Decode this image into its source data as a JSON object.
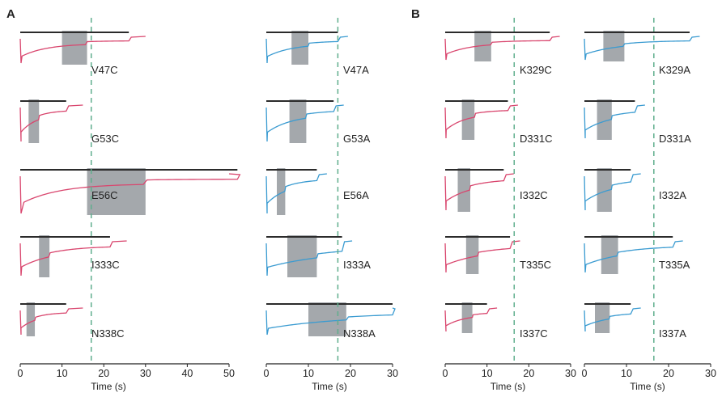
{
  "panels": [
    "A",
    "B"
  ],
  "colors": {
    "cys": "#d9466e",
    "ala": "#3a9bd1",
    "bar": "#2b2b2b",
    "shade": "#9a9fa3",
    "dash": "#5fae8d",
    "axis": "#222222"
  },
  "chart_data": [
    {
      "type": "line",
      "panel": "A",
      "column": "cysteine",
      "xlabel": "Time (s)",
      "xlim": [
        0,
        50
      ],
      "xticks": [
        0,
        10,
        20,
        30,
        40,
        50
      ],
      "reference_time_s": 17,
      "traces": [
        {
          "label": "V47C",
          "bar": [
            0,
            26
          ],
          "shade": [
            10,
            16
          ],
          "tau": 2.0
        },
        {
          "label": "G53C",
          "bar": [
            0,
            11
          ],
          "shade": [
            2,
            4.5
          ],
          "tau": 1.2
        },
        {
          "label": "E56C",
          "bar": [
            0,
            52
          ],
          "shade": [
            16,
            30
          ],
          "tau": 3.0
        },
        {
          "label": "I333C",
          "bar": [
            0,
            21.5
          ],
          "shade": [
            4.5,
            7
          ],
          "tau": 2.5
        },
        {
          "label": "N338C",
          "bar": [
            0,
            11
          ],
          "shade": [
            1.5,
            3.5
          ],
          "tau": 1.2
        }
      ]
    },
    {
      "type": "line",
      "panel": "A",
      "column": "alanine",
      "xlabel": "Time (s)",
      "xlim": [
        0,
        30
      ],
      "xticks": [
        0,
        10,
        20,
        30
      ],
      "reference_time_s": 17,
      "traces": [
        {
          "label": "V47A",
          "bar": [
            0,
            17
          ],
          "shade": [
            6,
            10
          ],
          "tau": 2.0
        },
        {
          "label": "G53A",
          "bar": [
            0,
            16
          ],
          "shade": [
            5.5,
            9.5
          ],
          "tau": 2.0
        },
        {
          "label": "E56A",
          "bar": [
            0,
            12
          ],
          "shade": [
            2.5,
            4.5
          ],
          "tau": 1.5
        },
        {
          "label": "I333A",
          "bar": [
            0,
            18
          ],
          "shade": [
            5,
            12
          ],
          "tau": 5.0
        },
        {
          "label": "N338A",
          "bar": [
            0,
            30
          ],
          "shade": [
            10,
            19
          ],
          "tau": 6.0
        }
      ]
    },
    {
      "type": "line",
      "panel": "B",
      "column": "cysteine",
      "xlabel": "Time (s)",
      "xlim": [
        0,
        30
      ],
      "xticks": [
        0,
        10,
        20,
        30
      ],
      "reference_time_s": 16.5,
      "traces": [
        {
          "label": "K329C",
          "bar": [
            0,
            25
          ],
          "shade": [
            7,
            11
          ],
          "tau": 2.0
        },
        {
          "label": "D331C",
          "bar": [
            0,
            15
          ],
          "shade": [
            4,
            7
          ],
          "tau": 1.5
        },
        {
          "label": "I332C",
          "bar": [
            0,
            14
          ],
          "shade": [
            3,
            6
          ],
          "tau": 2.0
        },
        {
          "label": "T335C",
          "bar": [
            0,
            15.5
          ],
          "shade": [
            5,
            8
          ],
          "tau": 3.0
        },
        {
          "label": "I337C",
          "bar": [
            0,
            10
          ],
          "shade": [
            4,
            6.5
          ],
          "tau": 1.5
        }
      ]
    },
    {
      "type": "line",
      "panel": "B",
      "column": "alanine",
      "xlabel": "Time (s)",
      "xlim": [
        0,
        30
      ],
      "xticks": [
        0,
        10,
        20,
        30
      ],
      "reference_time_s": 16.5,
      "traces": [
        {
          "label": "K329A",
          "bar": [
            0,
            25
          ],
          "shade": [
            4.5,
            9.5
          ],
          "tau": 2.5
        },
        {
          "label": "D331A",
          "bar": [
            0,
            12
          ],
          "shade": [
            3,
            6.5
          ],
          "tau": 2.0
        },
        {
          "label": "I332A",
          "bar": [
            0,
            11
          ],
          "shade": [
            3,
            6.5
          ],
          "tau": 2.0
        },
        {
          "label": "T335A",
          "bar": [
            0,
            21
          ],
          "shade": [
            4,
            8
          ],
          "tau": 3.0
        },
        {
          "label": "I337A",
          "bar": [
            0,
            11
          ],
          "shade": [
            2.5,
            6
          ],
          "tau": 2.0
        }
      ]
    }
  ]
}
